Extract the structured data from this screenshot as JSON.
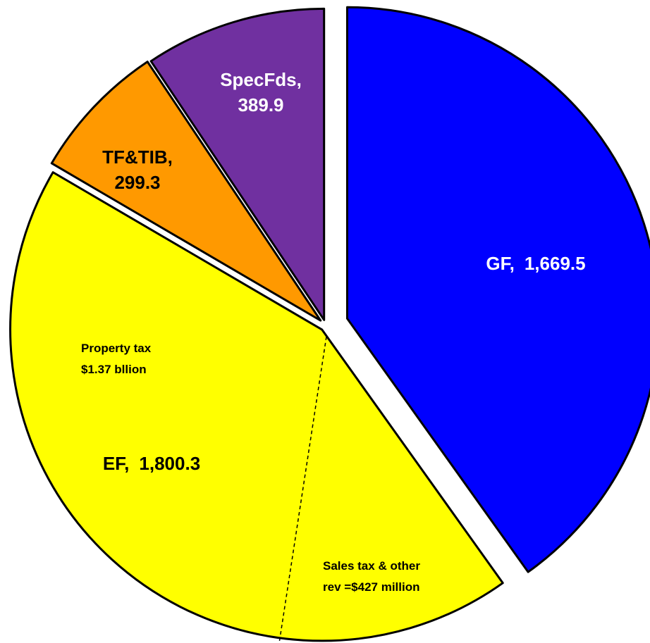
{
  "chart_data": {
    "type": "pie",
    "categories": [
      "GF,",
      "EF,",
      "TF&TIB,",
      "SpecFds,"
    ],
    "values": [
      1669.5,
      1800.3,
      299.3,
      389.9
    ],
    "value_labels": [
      "1,669.5",
      "1,800.3",
      "299.3",
      "389.9"
    ],
    "colors": [
      "#0000ff",
      "#ffff00",
      "#ff9900",
      "#7030a0"
    ],
    "annotations": [
      [
        "Property tax",
        "$1.37 bllion"
      ],
      [
        "Sales tax & other",
        "rev =$427 million"
      ]
    ]
  }
}
